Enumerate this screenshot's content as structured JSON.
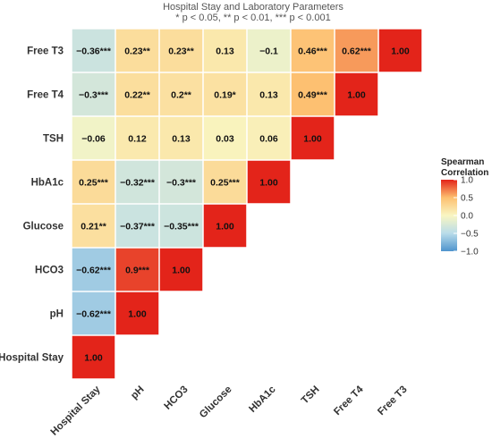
{
  "chart_data": {
    "type": "heatmap",
    "title": "Hospital Stay and Laboratory Parameters",
    "subtitle": "* p < 0.05, ** p < 0.01, *** p < 0.001",
    "variables": [
      "Hospital Stay",
      "pH",
      "HCO3",
      "Glucose",
      "HbA1c",
      "TSH",
      "Free T4",
      "Free T3"
    ],
    "rows_top_to_bottom": [
      "Free T3",
      "Free T4",
      "TSH",
      "HbA1c",
      "Glucose",
      "HCO3",
      "pH",
      "Hospital Stay"
    ],
    "cells": [
      {
        "row": "Free T3",
        "col": "Hospital Stay",
        "value": -0.36,
        "label": "−0.36***"
      },
      {
        "row": "Free T3",
        "col": "pH",
        "value": 0.23,
        "label": "0.23**"
      },
      {
        "row": "Free T3",
        "col": "HCO3",
        "value": 0.23,
        "label": "0.23**"
      },
      {
        "row": "Free T3",
        "col": "Glucose",
        "value": 0.13,
        "label": "0.13"
      },
      {
        "row": "Free T3",
        "col": "HbA1c",
        "value": -0.1,
        "label": "−0.1"
      },
      {
        "row": "Free T3",
        "col": "TSH",
        "value": 0.46,
        "label": "0.46***"
      },
      {
        "row": "Free T3",
        "col": "Free T4",
        "value": 0.62,
        "label": "0.62***"
      },
      {
        "row": "Free T3",
        "col": "Free T3",
        "value": 1.0,
        "label": "1.00"
      },
      {
        "row": "Free T4",
        "col": "Hospital Stay",
        "value": -0.3,
        "label": "−0.3***"
      },
      {
        "row": "Free T4",
        "col": "pH",
        "value": 0.22,
        "label": "0.22**"
      },
      {
        "row": "Free T4",
        "col": "HCO3",
        "value": 0.2,
        "label": "0.2**"
      },
      {
        "row": "Free T4",
        "col": "Glucose",
        "value": 0.19,
        "label": "0.19*"
      },
      {
        "row": "Free T4",
        "col": "HbA1c",
        "value": 0.13,
        "label": "0.13"
      },
      {
        "row": "Free T4",
        "col": "TSH",
        "value": 0.49,
        "label": "0.49***"
      },
      {
        "row": "Free T4",
        "col": "Free T4",
        "value": 1.0,
        "label": "1.00"
      },
      {
        "row": "TSH",
        "col": "Hospital Stay",
        "value": -0.06,
        "label": "−0.06"
      },
      {
        "row": "TSH",
        "col": "pH",
        "value": 0.12,
        "label": "0.12"
      },
      {
        "row": "TSH",
        "col": "HCO3",
        "value": 0.13,
        "label": "0.13"
      },
      {
        "row": "TSH",
        "col": "Glucose",
        "value": 0.03,
        "label": "0.03"
      },
      {
        "row": "TSH",
        "col": "HbA1c",
        "value": 0.06,
        "label": "0.06"
      },
      {
        "row": "TSH",
        "col": "TSH",
        "value": 1.0,
        "label": "1.00"
      },
      {
        "row": "HbA1c",
        "col": "Hospital Stay",
        "value": 0.25,
        "label": "0.25***"
      },
      {
        "row": "HbA1c",
        "col": "pH",
        "value": -0.32,
        "label": "−0.32***"
      },
      {
        "row": "HbA1c",
        "col": "HCO3",
        "value": -0.3,
        "label": "−0.3***"
      },
      {
        "row": "HbA1c",
        "col": "Glucose",
        "value": 0.25,
        "label": "0.25***"
      },
      {
        "row": "HbA1c",
        "col": "HbA1c",
        "value": 1.0,
        "label": "1.00"
      },
      {
        "row": "Glucose",
        "col": "Hospital Stay",
        "value": 0.21,
        "label": "0.21**"
      },
      {
        "row": "Glucose",
        "col": "pH",
        "value": -0.37,
        "label": "−0.37***"
      },
      {
        "row": "Glucose",
        "col": "HCO3",
        "value": -0.35,
        "label": "−0.35***"
      },
      {
        "row": "Glucose",
        "col": "Glucose",
        "value": 1.0,
        "label": "1.00"
      },
      {
        "row": "HCO3",
        "col": "Hospital Stay",
        "value": -0.62,
        "label": "−0.62***"
      },
      {
        "row": "HCO3",
        "col": "pH",
        "value": 0.9,
        "label": "0.9***"
      },
      {
        "row": "HCO3",
        "col": "HCO3",
        "value": 1.0,
        "label": "1.00"
      },
      {
        "row": "pH",
        "col": "Hospital Stay",
        "value": -0.62,
        "label": "−0.62***"
      },
      {
        "row": "pH",
        "col": "pH",
        "value": 1.0,
        "label": "1.00"
      },
      {
        "row": "Hospital Stay",
        "col": "Hospital Stay",
        "value": 1.0,
        "label": "1.00"
      }
    ],
    "legend": {
      "title_lines": [
        "Spearman",
        "Correlation"
      ],
      "ticks": [
        {
          "value": 1.0,
          "label": "1.0"
        },
        {
          "value": 0.5,
          "label": "0.5"
        },
        {
          "value": 0.0,
          "label": "0.0"
        },
        {
          "value": -0.5,
          "label": "−0.5"
        },
        {
          "value": -1.0,
          "label": "−1.0"
        }
      ],
      "range": [
        -1.0,
        1.0
      ],
      "placement": "right"
    },
    "colors": {
      "neg": "#4f94cd",
      "neg_mid": "#b9dcea",
      "mid": "#f9f6c2",
      "pos_mid": "#fdbf6f",
      "pos": "#e3241a"
    },
    "grid": false
  }
}
